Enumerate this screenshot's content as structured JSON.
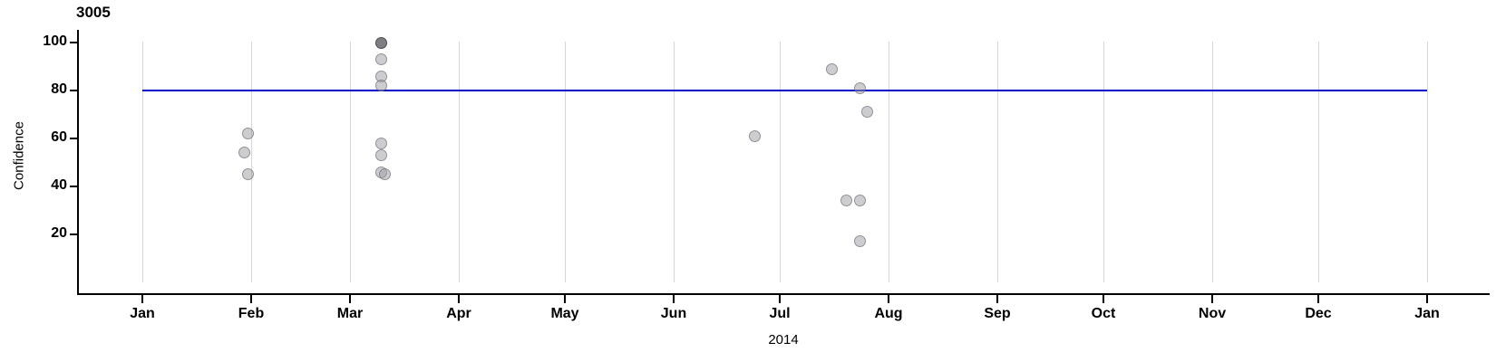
{
  "title": "3005",
  "y_axis": {
    "label": "Confidence",
    "ticks": [
      100,
      80,
      60,
      40,
      20
    ],
    "tick_labels": [
      "100",
      "80",
      "60",
      "40",
      "20"
    ]
  },
  "x_axis": {
    "year_label": "2014",
    "months": [
      "Jan",
      "Feb",
      "Mar",
      "Apr",
      "May",
      "Jun",
      "Jul",
      "Aug",
      "Sep",
      "Oct",
      "Nov",
      "Dec",
      "Jan"
    ]
  },
  "reference_line": {
    "y": 80,
    "color": "#0000cc"
  },
  "point_colors": {
    "normal_fill": "rgba(156,156,162,0.50)",
    "dark_fill": "rgba(108,108,114,0.88)"
  },
  "chart_data": {
    "type": "scatter",
    "title": "3005",
    "xlabel": "2014",
    "ylabel": "Confidence",
    "x_range": [
      "2014-01-01",
      "2015-01-01"
    ],
    "ylim": [
      0,
      105
    ],
    "y_ticks": [
      20,
      40,
      60,
      80,
      100
    ],
    "grid": "vertical gridline at the 1st of each month",
    "legend": "none",
    "reference_line_y": 80,
    "x_tick_days": [
      0,
      31,
      59,
      90,
      120,
      151,
      181,
      212,
      243,
      273,
      304,
      334,
      365
    ],
    "points": [
      {
        "date": "2014-01-30",
        "day": 29,
        "value": 54,
        "dark": false
      },
      {
        "date": "2014-01-31",
        "day": 30,
        "value": 62,
        "dark": false
      },
      {
        "date": "2014-01-31",
        "day": 30,
        "value": 45,
        "dark": false
      },
      {
        "date": "2014-03-10",
        "day": 68,
        "value": 100,
        "dark": true
      },
      {
        "date": "2014-03-10",
        "day": 68,
        "value": 93,
        "dark": false
      },
      {
        "date": "2014-03-10",
        "day": 68,
        "value": 86,
        "dark": false
      },
      {
        "date": "2014-03-10",
        "day": 68,
        "value": 82,
        "dark": false
      },
      {
        "date": "2014-03-10",
        "day": 68,
        "value": 58,
        "dark": false
      },
      {
        "date": "2014-03-10",
        "day": 68,
        "value": 53,
        "dark": false
      },
      {
        "date": "2014-03-10",
        "day": 68,
        "value": 46,
        "dark": false
      },
      {
        "date": "2014-03-11",
        "day": 69,
        "value": 45,
        "dark": false
      },
      {
        "date": "2014-06-24",
        "day": 174,
        "value": 61,
        "dark": false
      },
      {
        "date": "2014-07-16",
        "day": 196,
        "value": 89,
        "dark": false
      },
      {
        "date": "2014-07-24",
        "day": 204,
        "value": 81,
        "dark": false
      },
      {
        "date": "2014-07-26",
        "day": 206,
        "value": 71,
        "dark": false
      },
      {
        "date": "2014-07-20",
        "day": 200,
        "value": 34,
        "dark": false
      },
      {
        "date": "2014-07-24",
        "day": 204,
        "value": 34,
        "dark": false
      },
      {
        "date": "2014-07-24",
        "day": 204,
        "value": 17,
        "dark": false
      }
    ]
  }
}
